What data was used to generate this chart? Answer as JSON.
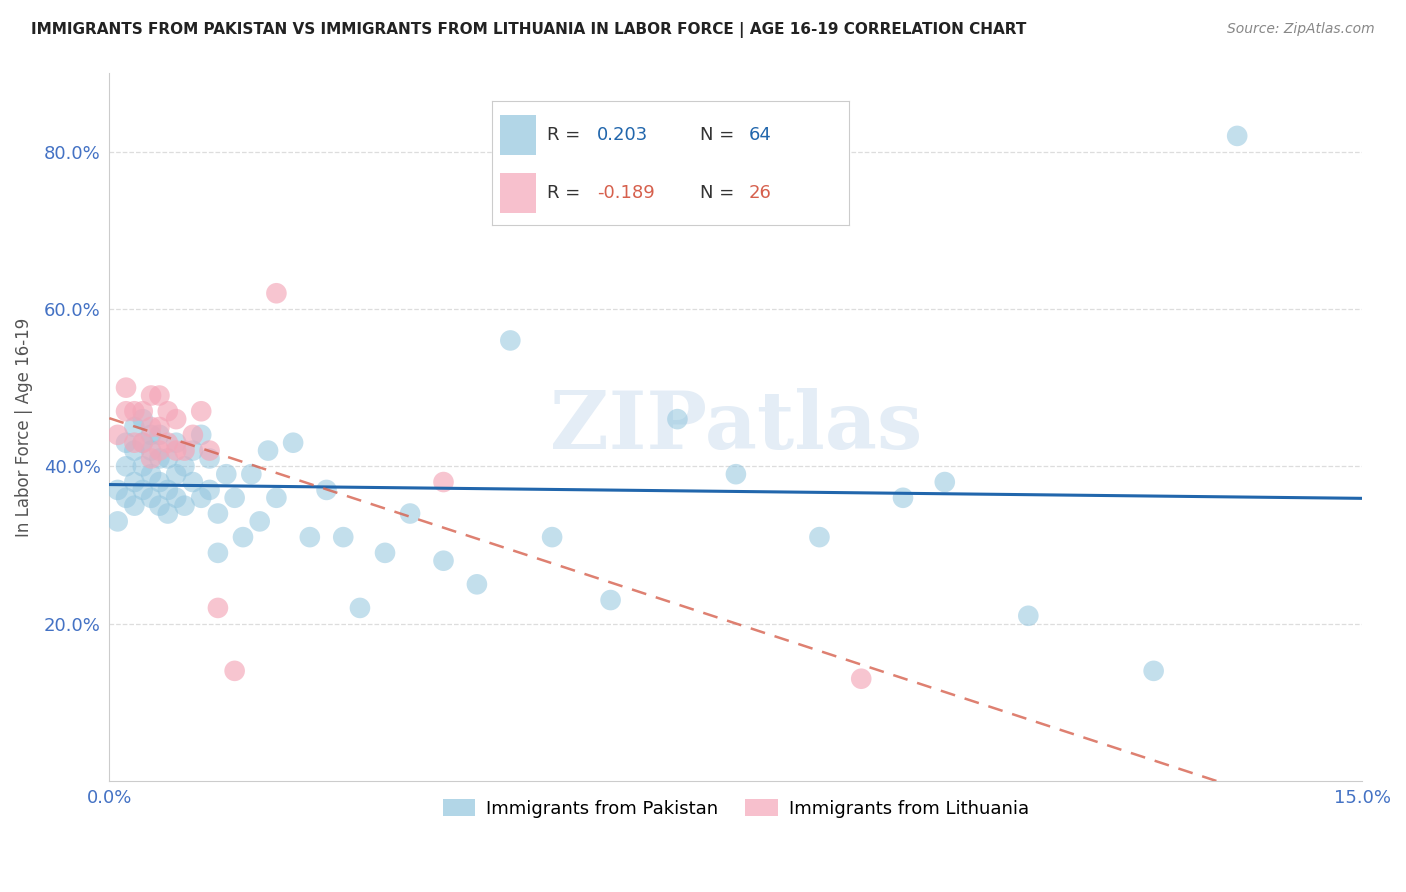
{
  "title": "IMMIGRANTS FROM PAKISTAN VS IMMIGRANTS FROM LITHUANIA IN LABOR FORCE | AGE 16-19 CORRELATION CHART",
  "source": "Source: ZipAtlas.com",
  "ylabel": "In Labor Force | Age 16-19",
  "xlim": [
    0.0,
    0.15
  ],
  "ylim": [
    0.0,
    0.9
  ],
  "yticks": [
    0.2,
    0.4,
    0.6,
    0.8
  ],
  "xticks": [
    0.0,
    0.03,
    0.06,
    0.09,
    0.12,
    0.15
  ],
  "xtick_labels": [
    "0.0%",
    "",
    "",
    "",
    "",
    "15.0%"
  ],
  "ytick_labels": [
    "20.0%",
    "40.0%",
    "60.0%",
    "80.0%"
  ],
  "pakistan_R": 0.203,
  "pakistan_N": 64,
  "lithuania_R": -0.189,
  "lithuania_N": 26,
  "pakistan_color": "#92C5DE",
  "lithuania_color": "#F4A6B8",
  "pakistan_line_color": "#2166AC",
  "lithuania_line_color": "#D6604D",
  "watermark_text": "ZIPatlas",
  "grid_color": "#DDDDDD",
  "pakistan_x": [
    0.001,
    0.001,
    0.002,
    0.002,
    0.002,
    0.003,
    0.003,
    0.003,
    0.003,
    0.004,
    0.004,
    0.004,
    0.004,
    0.005,
    0.005,
    0.005,
    0.005,
    0.006,
    0.006,
    0.006,
    0.006,
    0.007,
    0.007,
    0.007,
    0.008,
    0.008,
    0.008,
    0.009,
    0.009,
    0.01,
    0.01,
    0.011,
    0.011,
    0.012,
    0.012,
    0.013,
    0.013,
    0.014,
    0.015,
    0.016,
    0.017,
    0.018,
    0.019,
    0.02,
    0.022,
    0.024,
    0.026,
    0.028,
    0.03,
    0.033,
    0.036,
    0.04,
    0.044,
    0.048,
    0.053,
    0.06,
    0.068,
    0.075,
    0.085,
    0.095,
    0.1,
    0.11,
    0.125,
    0.135
  ],
  "pakistan_y": [
    0.33,
    0.37,
    0.36,
    0.4,
    0.43,
    0.35,
    0.38,
    0.42,
    0.45,
    0.37,
    0.4,
    0.43,
    0.46,
    0.36,
    0.39,
    0.42,
    0.44,
    0.35,
    0.38,
    0.41,
    0.44,
    0.34,
    0.37,
    0.41,
    0.36,
    0.39,
    0.43,
    0.35,
    0.4,
    0.38,
    0.42,
    0.36,
    0.44,
    0.37,
    0.41,
    0.29,
    0.34,
    0.39,
    0.36,
    0.31,
    0.39,
    0.33,
    0.42,
    0.36,
    0.43,
    0.31,
    0.37,
    0.31,
    0.22,
    0.29,
    0.34,
    0.28,
    0.25,
    0.56,
    0.31,
    0.23,
    0.46,
    0.39,
    0.31,
    0.36,
    0.38,
    0.21,
    0.14,
    0.82
  ],
  "lithuania_x": [
    0.001,
    0.002,
    0.002,
    0.003,
    0.003,
    0.004,
    0.004,
    0.005,
    0.005,
    0.005,
    0.006,
    0.006,
    0.006,
    0.007,
    0.007,
    0.008,
    0.008,
    0.009,
    0.01,
    0.011,
    0.012,
    0.013,
    0.015,
    0.02,
    0.04,
    0.09
  ],
  "lithuania_y": [
    0.44,
    0.47,
    0.5,
    0.43,
    0.47,
    0.43,
    0.47,
    0.41,
    0.45,
    0.49,
    0.42,
    0.45,
    0.49,
    0.43,
    0.47,
    0.42,
    0.46,
    0.42,
    0.44,
    0.47,
    0.42,
    0.22,
    0.14,
    0.62,
    0.38,
    0.13
  ]
}
